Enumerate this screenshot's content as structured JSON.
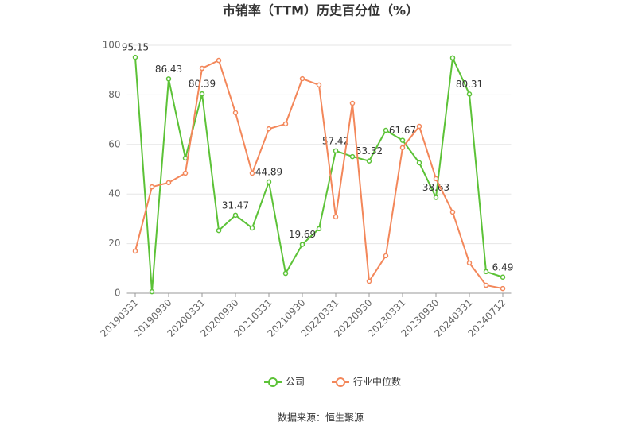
{
  "chart_data": {
    "type": "line",
    "title": "市销率（TTM）历史百分位（%）",
    "categories": [
      "20190331",
      null,
      "20190930",
      null,
      "20200331",
      null,
      "20200930",
      null,
      "20210331",
      null,
      "20210930",
      null,
      "20220331",
      null,
      "20220930",
      null,
      "20230331",
      null,
      "20230930",
      null,
      "20240331",
      null,
      "20240712"
    ],
    "series": [
      {
        "name": "公司",
        "color": "#5cc237",
        "values": [
          95.15,
          0.6,
          86.43,
          54.5,
          80.39,
          25.3,
          31.47,
          26.3,
          44.89,
          8.0,
          19.69,
          26.0,
          57.42,
          55.1,
          53.32,
          65.7,
          61.67,
          52.6,
          38.63,
          94.9,
          80.31,
          8.7,
          6.49
        ],
        "value_labels": [
          "95.15",
          null,
          "86.43",
          null,
          "80.39",
          null,
          "31.47",
          null,
          "44.89",
          null,
          "19.69",
          null,
          "57.42",
          null,
          "53.32",
          null,
          "61.67",
          null,
          "38.63",
          null,
          "80.31",
          null,
          "6.49"
        ]
      },
      {
        "name": "行业中位数",
        "color": "#f3875a",
        "values": [
          17.0,
          42.9,
          44.6,
          48.4,
          90.7,
          93.9,
          72.8,
          48.4,
          66.3,
          68.3,
          86.5,
          84.0,
          30.8,
          76.6,
          4.8,
          15.1,
          58.7,
          67.3,
          46.2,
          32.7,
          12.2,
          3.2,
          1.9
        ]
      }
    ],
    "ylim": [
      0,
      100
    ],
    "yticks": [
      0,
      20,
      40,
      60,
      80,
      100
    ],
    "grid": true,
    "source": "数据来源：恒生聚源"
  }
}
